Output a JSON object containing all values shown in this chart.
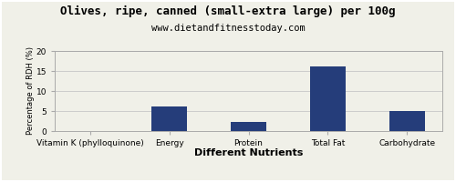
{
  "title": "Olives, ripe, canned (small-extra large) per 100g",
  "subtitle": "www.dietandfitnesstoday.com",
  "xlabel": "Different Nutrients",
  "ylabel": "Percentage of RDH (%)",
  "categories": [
    "Vitamin K (phylloquinone)",
    "Energy",
    "Protein",
    "Total Fat",
    "Carbohydrate"
  ],
  "values": [
    0,
    6.1,
    2.2,
    16.2,
    5.0
  ],
  "bar_color": "#253D7A",
  "ylim": [
    0,
    20
  ],
  "yticks": [
    0,
    5,
    10,
    15,
    20
  ],
  "background_color": "#f0f0e8",
  "plot_background": "#f0f0e8",
  "grid_color": "#cccccc",
  "border_color": "#aaaaaa",
  "title_fontsize": 9,
  "subtitle_fontsize": 7.5,
  "xlabel_fontsize": 8,
  "ylabel_fontsize": 6,
  "tick_fontsize": 6.5,
  "bar_width": 0.45
}
